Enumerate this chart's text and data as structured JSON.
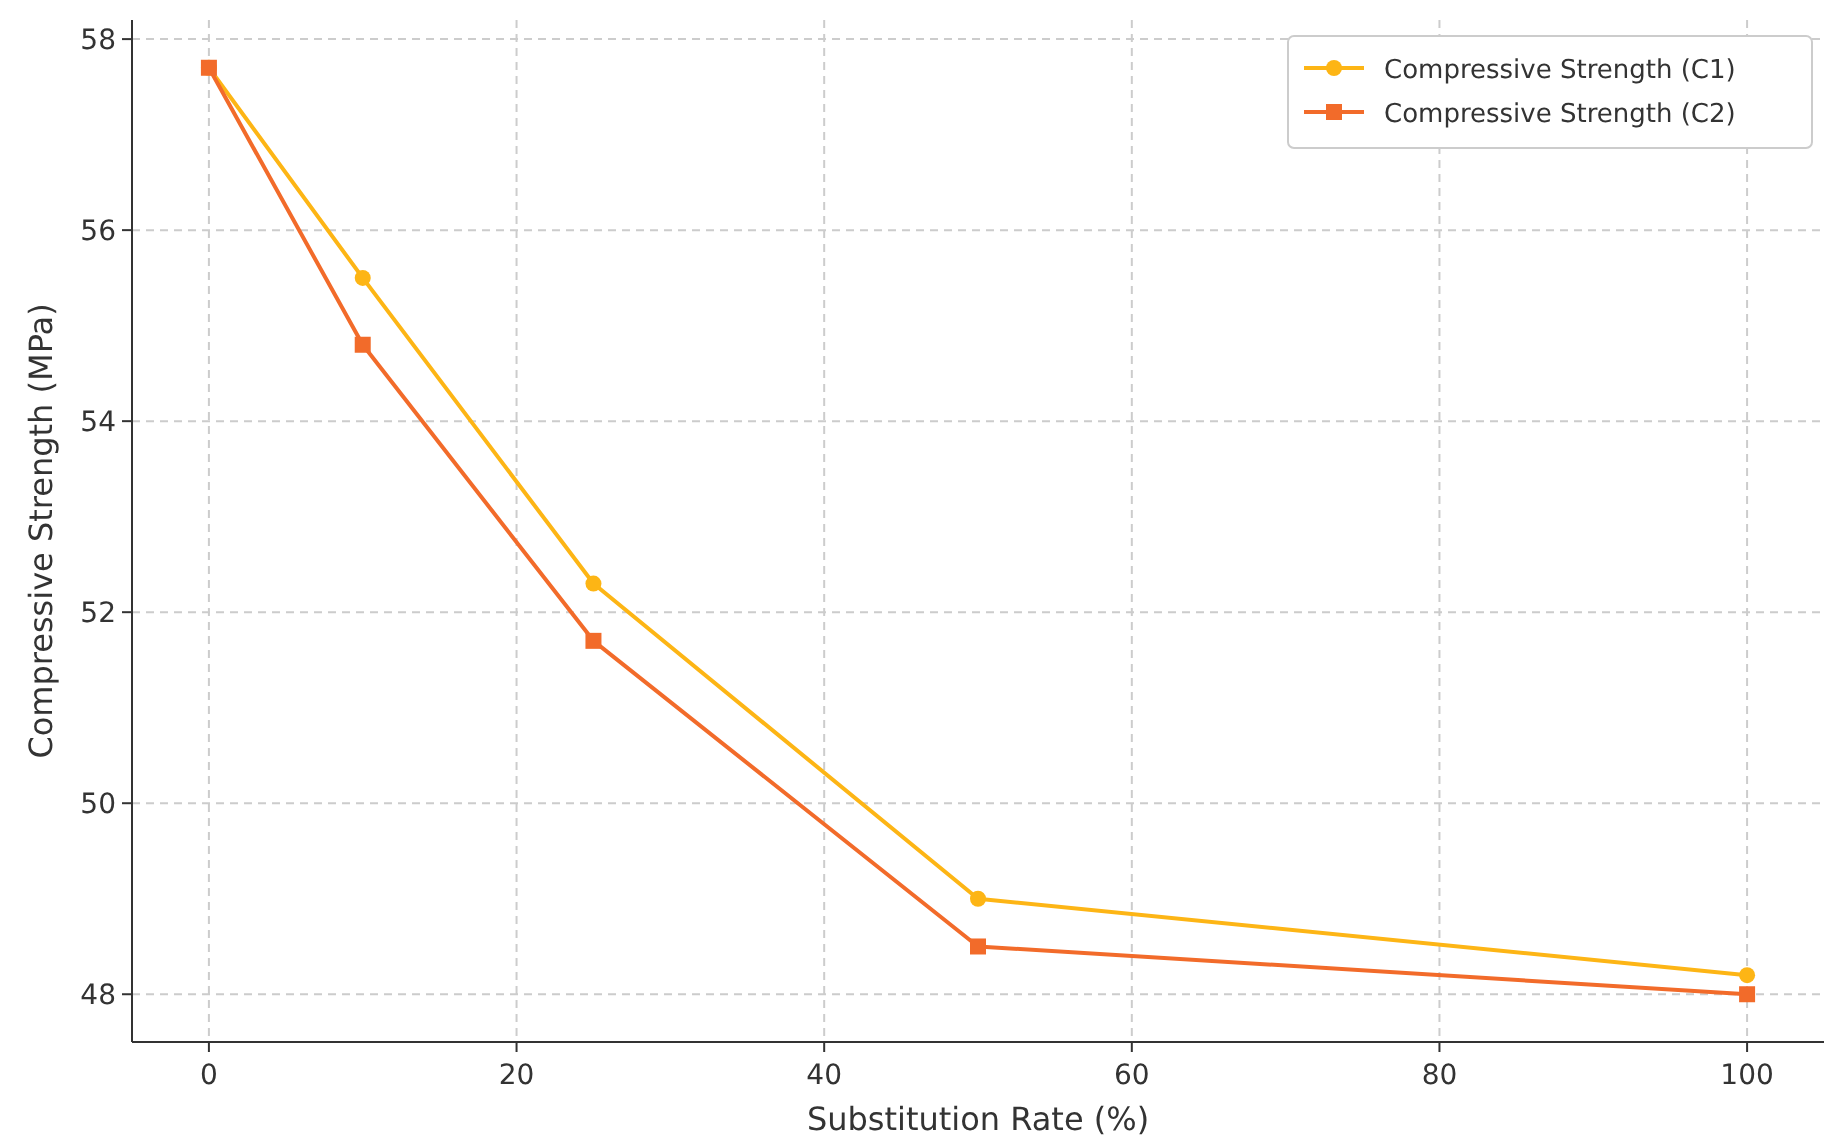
{
  "chart_data": {
    "type": "line",
    "xlabel": "Substitution Rate (%)",
    "ylabel": "Compressive Strength (MPa)",
    "x": [
      0,
      10,
      25,
      50,
      100
    ],
    "series": [
      {
        "name": "Compressive Strength (C1)",
        "color": "#fdb515",
        "marker": "circle",
        "values": [
          57.7,
          55.5,
          52.3,
          49.0,
          48.2
        ]
      },
      {
        "name": "Compressive Strength (C2)",
        "color": "#f26b2a",
        "marker": "square",
        "values": [
          57.7,
          54.8,
          51.7,
          48.5,
          48.0
        ]
      }
    ],
    "xlim": [
      -5,
      105
    ],
    "xticks": [
      0,
      20,
      40,
      60,
      80,
      100
    ],
    "ylim": [
      47.5,
      58.2
    ],
    "yticks": [
      48,
      50,
      52,
      54,
      56,
      58
    ],
    "grid": true,
    "legend": "top right",
    "line_style": "solid"
  }
}
